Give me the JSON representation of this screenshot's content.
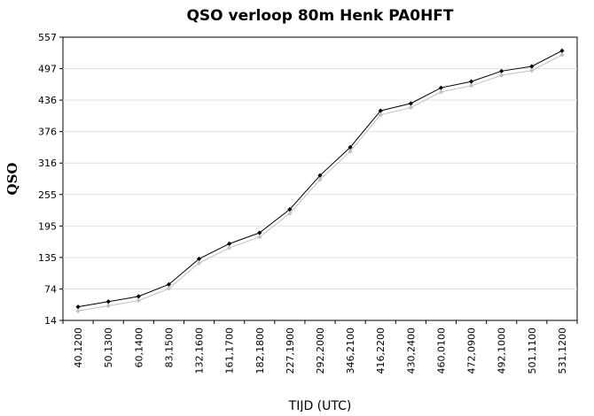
{
  "chart_data": {
    "type": "line",
    "title": "QSO verloop 80m Henk PA0HFT",
    "xlabel": "TIJD (UTC)",
    "ylabel": "QSO",
    "categories": [
      "40,1200",
      "50,1300",
      "60,1400",
      "83,1500",
      "132,1600",
      "161,1700",
      "182,1800",
      "227,1900",
      "292,2000",
      "346,2100",
      "416,2200",
      "430,2400",
      "460,0100",
      "472,0900",
      "492,1000",
      "501,1100",
      "531,1200"
    ],
    "yticks": [
      "14",
      "74",
      "135",
      "195",
      "255",
      "316",
      "376",
      "436",
      "497",
      "557"
    ],
    "ylim": [
      14,
      557
    ],
    "grid": true,
    "series": [
      {
        "values": [
          40,
          50,
          60,
          83,
          132,
          161,
          182,
          227,
          292,
          346,
          416,
          430,
          460,
          472,
          492,
          501,
          531
        ],
        "color": "#000000"
      },
      {
        "values": [
          32,
          42,
          52,
          75,
          124,
          153,
          174,
          219,
          284,
          338,
          408,
          422,
          452,
          464,
          484,
          493,
          523
        ],
        "color": "#c0c0c0"
      }
    ]
  }
}
